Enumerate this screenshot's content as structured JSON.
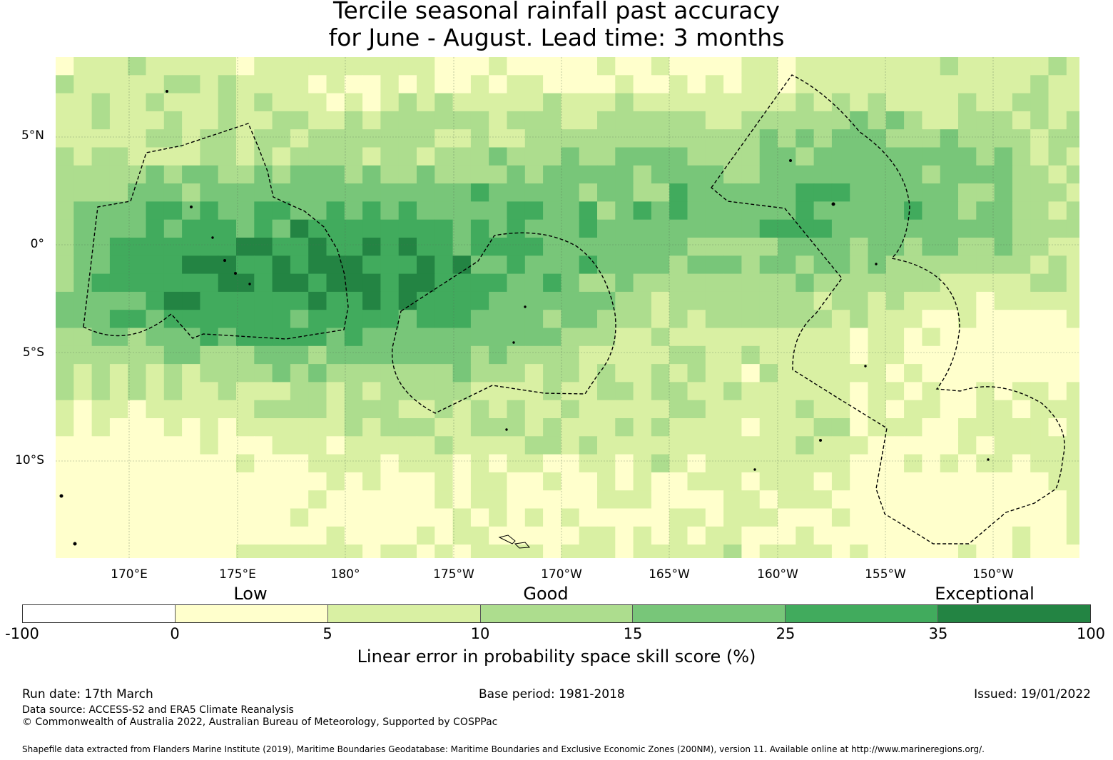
{
  "title": {
    "line1": "Tercile seasonal rainfall past accuracy",
    "line2": "for June - August. Lead time: 3 months"
  },
  "map": {
    "lat_labels": [
      "5°N",
      "0°",
      "5°S",
      "10°S"
    ],
    "lon_labels": [
      "170°E",
      "175°E",
      "180°",
      "175°W",
      "170°W",
      "165°W",
      "160°W",
      "155°W",
      "150°W"
    ]
  },
  "legend": {
    "categories": [
      "Low",
      "Good",
      "Exceptional"
    ],
    "ticks": [
      "-100",
      "0",
      "5",
      "10",
      "15",
      "25",
      "35",
      "100"
    ],
    "colors": [
      "#ffffff",
      "#ffffcc",
      "#d9f0a3",
      "#addd8e",
      "#78c679",
      "#41ab5d",
      "#238443"
    ],
    "title": "Linear error in probability space skill score (%)"
  },
  "footer": {
    "run_date": "Run date: 17th March",
    "base_period": "Base period: 1981-2018",
    "issued": "Issued: 19/01/2022",
    "data_source": "Data source: ACCESS-S2 and ERA5 Climate Reanalysis",
    "copyright": "© Commonwealth of Australia 2022, Australian Bureau of Meteorology, Supported by COSPPac",
    "shapefile": "Shapefile data extracted from Flanders Marine Institute (2019), Maritime Boundaries Geodatabase: Maritime Boundaries and Exclusive Economic Zones (200NM), version 11. Available online at http://www.marineregions.org/."
  }
}
